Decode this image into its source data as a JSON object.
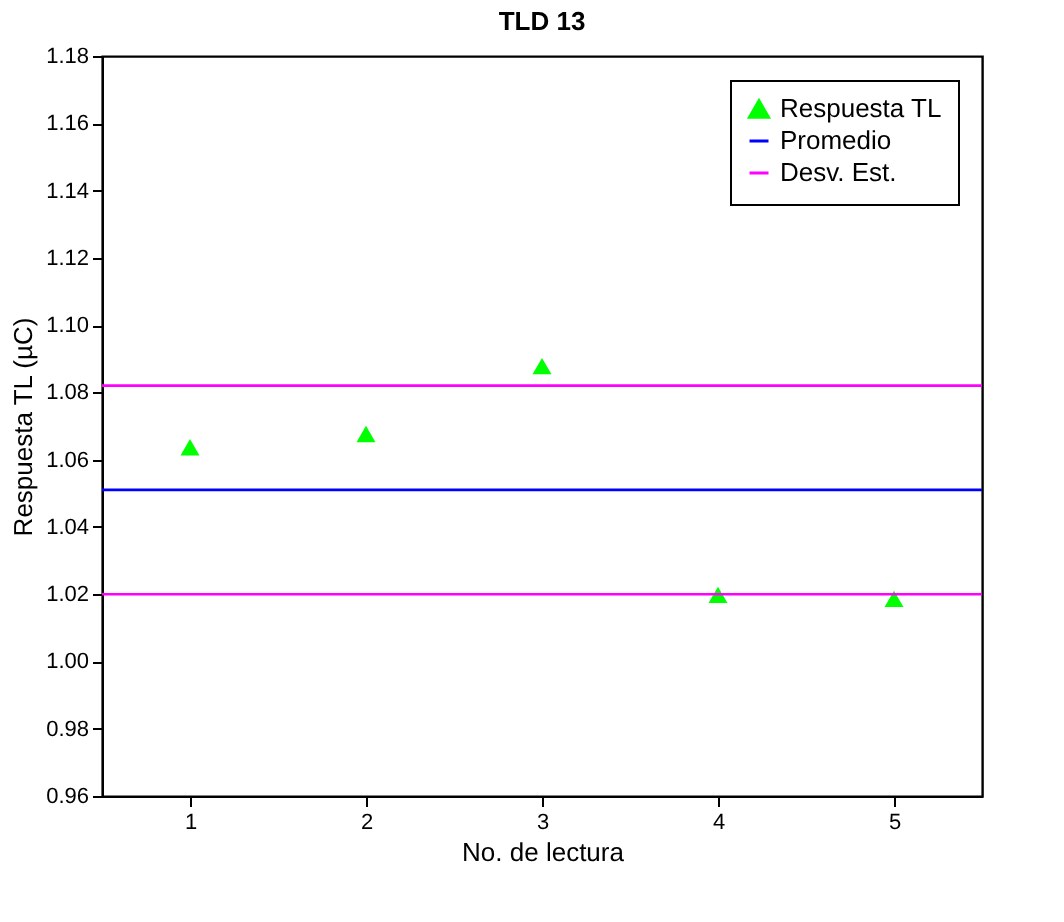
{
  "chart_data": {
    "type": "scatter",
    "title": "TLD 13",
    "xlabel": "No. de lectura",
    "ylabel": "Respuesta TL (µC)",
    "x": [
      1,
      2,
      3,
      4,
      5
    ],
    "series": [
      {
        "name": "Respuesta TL",
        "color": "#00ff00",
        "marker": "triangle",
        "values": [
          1.0637,
          1.0676,
          1.0878,
          1.0198,
          1.0186
        ]
      }
    ],
    "ref_lines": [
      {
        "axis": "y",
        "value": 1.051,
        "label": "Promedio",
        "color": "#0000ff"
      },
      {
        "axis": "y",
        "value": 1.02,
        "label": "Desv. Est.",
        "color": "#ff00ff"
      },
      {
        "axis": "y",
        "value": 1.082,
        "color": "#ff00ff"
      }
    ],
    "xlim": [
      0.5,
      5.5
    ],
    "xticks": [
      1,
      2,
      3,
      4,
      5
    ],
    "ylim": [
      0.96,
      1.18
    ],
    "yticks": [
      0.96,
      0.98,
      {
        "value": 1.0,
        "label": "1.00"
      },
      1.02,
      1.04,
      1.06,
      1.08,
      {
        "value": 1.1,
        "label": "1.10"
      },
      1.12,
      1.14,
      1.16,
      1.18
    ],
    "grid": false,
    "legend": "top right"
  }
}
